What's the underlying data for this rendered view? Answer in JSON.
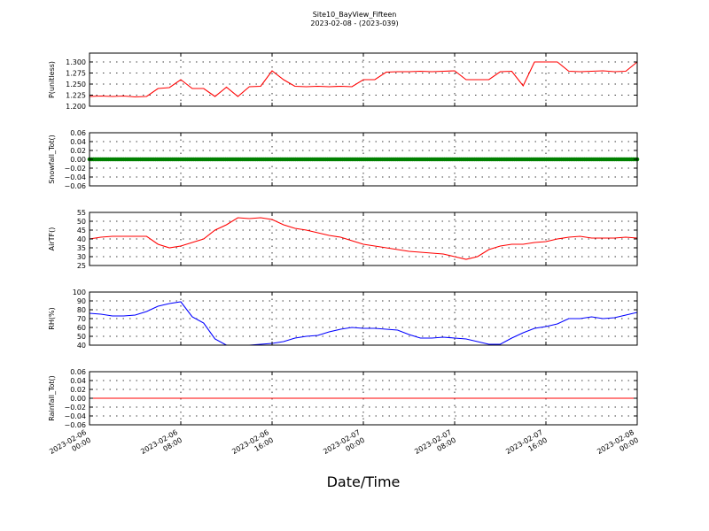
{
  "figure": {
    "title_line1": "Site10_BayView_Fifteen",
    "title_line2": "2023-02-08 - (2023-039)",
    "xlabel": "Date/Time",
    "x_range": [
      "2023-02-06 00:00",
      "2023-02-08 00:00"
    ],
    "x_ticks": [
      {
        "value": "2023-02-06 00:00",
        "line1": "2023-02-06",
        "line2": "00:00"
      },
      {
        "value": "2023-02-06 08:00",
        "line1": "2023-02-06",
        "line2": "08:00"
      },
      {
        "value": "2023-02-06 16:00",
        "line1": "2023-02-06",
        "line2": "16:00"
      },
      {
        "value": "2023-02-07 00:00",
        "line1": "2023-02-07",
        "line2": "00:00"
      },
      {
        "value": "2023-02-07 08:00",
        "line1": "2023-02-07",
        "line2": "08:00"
      },
      {
        "value": "2023-02-07 16:00",
        "line1": "2023-02-07",
        "line2": "16:00"
      },
      {
        "value": "2023-02-08 00:00",
        "line1": "2023-02-08",
        "line2": "00:00"
      }
    ]
  },
  "chart_data": [
    {
      "type": "line",
      "ylabel": "P(unitless)",
      "ylim": [
        1.2,
        1.32
      ],
      "yticks": [
        "1.200",
        "1.225",
        "1.250",
        "1.275",
        "1.300"
      ],
      "ytick_values": [
        1.2,
        1.225,
        1.25,
        1.275,
        1.3
      ],
      "grid": true,
      "color": "#ff0000",
      "x": [
        "2023-02-06 00:00",
        "2023-02-06 01:00",
        "2023-02-06 02:00",
        "2023-02-06 03:00",
        "2023-02-06 04:00",
        "2023-02-06 05:00",
        "2023-02-06 06:00",
        "2023-02-06 07:00",
        "2023-02-06 08:00",
        "2023-02-06 09:00",
        "2023-02-06 10:00",
        "2023-02-06 11:00",
        "2023-02-06 12:00",
        "2023-02-06 13:00",
        "2023-02-06 14:00",
        "2023-02-06 15:00",
        "2023-02-06 16:00",
        "2023-02-06 17:00",
        "2023-02-06 18:00",
        "2023-02-06 19:00",
        "2023-02-06 20:00",
        "2023-02-06 21:00",
        "2023-02-06 22:00",
        "2023-02-06 23:00",
        "2023-02-07 00:00",
        "2023-02-07 01:00",
        "2023-02-07 02:00",
        "2023-02-07 03:00",
        "2023-02-07 04:00",
        "2023-02-07 05:00",
        "2023-02-07 06:00",
        "2023-02-07 07:00",
        "2023-02-07 08:00",
        "2023-02-07 09:00",
        "2023-02-07 10:00",
        "2023-02-07 11:00",
        "2023-02-07 12:00",
        "2023-02-07 13:00",
        "2023-02-07 14:00",
        "2023-02-07 15:00",
        "2023-02-07 16:00",
        "2023-02-07 17:00",
        "2023-02-07 18:00",
        "2023-02-07 19:00",
        "2023-02-07 20:00",
        "2023-02-07 21:00",
        "2023-02-07 22:00",
        "2023-02-07 23:00",
        "2023-02-08 00:00"
      ],
      "y": [
        1.222,
        1.223,
        1.222,
        1.223,
        1.221,
        1.222,
        1.24,
        1.242,
        1.26,
        1.24,
        1.24,
        1.222,
        1.243,
        1.222,
        1.244,
        1.245,
        1.28,
        1.26,
        1.245,
        1.244,
        1.245,
        1.244,
        1.245,
        1.244,
        1.26,
        1.26,
        1.277,
        1.278,
        1.278,
        1.279,
        1.278,
        1.279,
        1.28,
        1.26,
        1.26,
        1.26,
        1.278,
        1.279,
        1.246,
        1.3,
        1.3,
        1.3,
        1.279,
        1.278,
        1.279,
        1.28,
        1.278,
        1.279,
        1.3
      ]
    },
    {
      "type": "scatter",
      "ylabel": "Snowfall_Tot()",
      "ylim": [
        -0.06,
        0.06
      ],
      "yticks": [
        "0.06",
        "0.04",
        "0.02",
        "0.00",
        "−0.02",
        "−0.04",
        "−0.06"
      ],
      "ytick_values": [
        0.06,
        0.04,
        0.02,
        0.0,
        -0.02,
        -0.04,
        -0.06
      ],
      "grid": true,
      "color": "#008000",
      "x_start": "2023-02-06 00:00",
      "x_end": "2023-02-08 00:00",
      "constant_value": 0.0
    },
    {
      "type": "line",
      "ylabel": "AirTF()",
      "ylim": [
        25,
        55
      ],
      "yticks": [
        "25",
        "30",
        "35",
        "40",
        "45",
        "50",
        "55"
      ],
      "ytick_values": [
        25,
        30,
        35,
        40,
        45,
        50,
        55
      ],
      "grid": true,
      "color": "#ff0000",
      "x": [
        "2023-02-06 00:00",
        "2023-02-06 01:00",
        "2023-02-06 02:00",
        "2023-02-06 03:00",
        "2023-02-06 04:00",
        "2023-02-06 05:00",
        "2023-02-06 06:00",
        "2023-02-06 07:00",
        "2023-02-06 08:00",
        "2023-02-06 09:00",
        "2023-02-06 10:00",
        "2023-02-06 11:00",
        "2023-02-06 12:00",
        "2023-02-06 13:00",
        "2023-02-06 14:00",
        "2023-02-06 15:00",
        "2023-02-06 16:00",
        "2023-02-06 17:00",
        "2023-02-06 18:00",
        "2023-02-06 19:00",
        "2023-02-06 20:00",
        "2023-02-06 21:00",
        "2023-02-06 22:00",
        "2023-02-06 23:00",
        "2023-02-07 00:00",
        "2023-02-07 01:00",
        "2023-02-07 02:00",
        "2023-02-07 03:00",
        "2023-02-07 04:00",
        "2023-02-07 05:00",
        "2023-02-07 06:00",
        "2023-02-07 07:00",
        "2023-02-07 08:00",
        "2023-02-07 09:00",
        "2023-02-07 10:00",
        "2023-02-07 11:00",
        "2023-02-07 12:00",
        "2023-02-07 13:00",
        "2023-02-07 14:00",
        "2023-02-07 15:00",
        "2023-02-07 16:00",
        "2023-02-07 17:00",
        "2023-02-07 18:00",
        "2023-02-07 19:00",
        "2023-02-07 20:00",
        "2023-02-07 21:00",
        "2023-02-07 22:00",
        "2023-02-07 23:00",
        "2023-02-08 00:00"
      ],
      "y": [
        40,
        41,
        41.5,
        41.5,
        41.5,
        41.5,
        37,
        35,
        36,
        38,
        40,
        45,
        48,
        52,
        51.5,
        52,
        51,
        48,
        46,
        45,
        43.5,
        42,
        41,
        39,
        37,
        36,
        35,
        34,
        33,
        32.5,
        32,
        31.5,
        30,
        28.5,
        30,
        34,
        36,
        37,
        37,
        38,
        38.5,
        40,
        41,
        41.5,
        40.5,
        40.5,
        40.5,
        41,
        40.5
      ]
    },
    {
      "type": "line",
      "ylabel": "RH(%)",
      "ylim": [
        40,
        100
      ],
      "yticks": [
        "40",
        "50",
        "60",
        "70",
        "80",
        "90",
        "100"
      ],
      "ytick_values": [
        40,
        50,
        60,
        70,
        80,
        90,
        100
      ],
      "grid": true,
      "color": "#0000ff",
      "x": [
        "2023-02-06 00:00",
        "2023-02-06 01:00",
        "2023-02-06 02:00",
        "2023-02-06 03:00",
        "2023-02-06 04:00",
        "2023-02-06 05:00",
        "2023-02-06 06:00",
        "2023-02-06 07:00",
        "2023-02-06 08:00",
        "2023-02-06 09:00",
        "2023-02-06 10:00",
        "2023-02-06 11:00",
        "2023-02-06 12:00",
        "2023-02-06 13:00",
        "2023-02-06 14:00",
        "2023-02-06 15:00",
        "2023-02-06 16:00",
        "2023-02-06 17:00",
        "2023-02-06 18:00",
        "2023-02-06 19:00",
        "2023-02-06 20:00",
        "2023-02-06 21:00",
        "2023-02-06 22:00",
        "2023-02-06 23:00",
        "2023-02-07 00:00",
        "2023-02-07 01:00",
        "2023-02-07 02:00",
        "2023-02-07 03:00",
        "2023-02-07 04:00",
        "2023-02-07 05:00",
        "2023-02-07 06:00",
        "2023-02-07 07:00",
        "2023-02-07 08:00",
        "2023-02-07 09:00",
        "2023-02-07 10:00",
        "2023-02-07 11:00",
        "2023-02-07 12:00",
        "2023-02-07 13:00",
        "2023-02-07 14:00",
        "2023-02-07 15:00",
        "2023-02-07 16:00",
        "2023-02-07 17:00",
        "2023-02-07 18:00",
        "2023-02-07 19:00",
        "2023-02-07 20:00",
        "2023-02-07 21:00",
        "2023-02-07 22:00",
        "2023-02-07 23:00",
        "2023-02-08 00:00"
      ],
      "y": [
        76,
        75,
        73,
        73,
        74,
        78,
        84,
        87,
        89,
        72,
        65,
        47,
        40,
        40,
        40,
        41,
        42,
        44,
        48,
        50,
        51,
        55,
        58,
        60,
        59,
        59,
        58,
        57,
        52,
        48,
        48,
        49,
        48,
        47,
        44,
        41,
        41,
        48,
        54,
        59,
        61,
        64,
        70,
        70,
        72,
        70,
        71,
        74,
        77
      ]
    },
    {
      "type": "line",
      "ylabel": "Rainfall_Tot()",
      "ylim": [
        -0.06,
        0.06
      ],
      "yticks": [
        "0.06",
        "0.04",
        "0.02",
        "0.00",
        "−0.02",
        "−0.04",
        "−0.06"
      ],
      "ytick_values": [
        0.06,
        0.04,
        0.02,
        0.0,
        -0.02,
        -0.04,
        -0.06
      ],
      "grid": true,
      "color": "#ff0000",
      "x_start": "2023-02-06 00:00",
      "x_end": "2023-02-08 00:00",
      "constant_value": 0.0
    }
  ]
}
